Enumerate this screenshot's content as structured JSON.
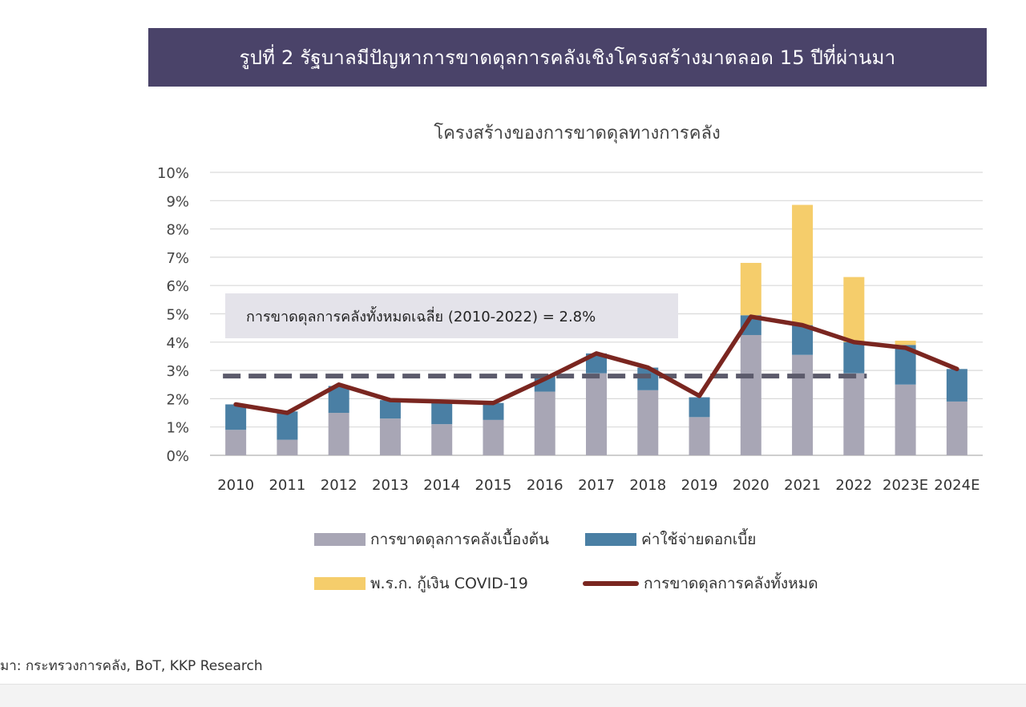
{
  "figure": {
    "banner_title": "รูปที่ 2 รัฐบาลมีปัญหาการขาดดุลการคลังเชิงโครงสร้างมาตลอด 15 ปีที่ผ่านมา",
    "source": "มา: กระทรวงการคลัง, BoT, KKP Research",
    "average_label": "การขาดดุลการคลังทั้งหมดเฉลี่ย (2010-2022) = 2.8%"
  },
  "chart_data": {
    "type": "bar",
    "stacked": true,
    "title": "โครงสร้างของการขาดดุลทางการคลัง",
    "categories": [
      "2010",
      "2011",
      "2012",
      "2013",
      "2014",
      "2015",
      "2016",
      "2017",
      "2018",
      "2019",
      "2020",
      "2021",
      "2022",
      "2023E",
      "2024E"
    ],
    "series": [
      {
        "name": "การขาดดุลการคลังเบื้องต้น",
        "type": "bar",
        "color": "#a8a6b5",
        "values": [
          0.9,
          0.55,
          1.5,
          1.3,
          1.1,
          1.25,
          2.25,
          2.9,
          2.3,
          1.35,
          4.25,
          3.55,
          2.9,
          2.5,
          1.9
        ]
      },
      {
        "name": "ค่าใช้จ่ายดอกเบี้ย",
        "type": "bar",
        "color": "#4a7fa4",
        "values": [
          0.9,
          1.0,
          0.95,
          0.65,
          0.75,
          0.6,
          0.55,
          0.7,
          0.8,
          0.7,
          0.7,
          1.05,
          1.1,
          1.4,
          1.15
        ]
      },
      {
        "name": "พ.ร.ก. กู้เงิน COVID-19",
        "type": "bar",
        "color": "#f5cd6b",
        "values": [
          0,
          0,
          0,
          0,
          0,
          0,
          0,
          0,
          0,
          0,
          1.85,
          4.25,
          2.3,
          0.15,
          0
        ]
      },
      {
        "name": "การขาดดุลการคลังทั้งหมด",
        "type": "line",
        "color": "#7a2620",
        "values": [
          1.8,
          1.5,
          2.5,
          1.95,
          1.9,
          1.85,
          2.7,
          3.6,
          3.1,
          2.1,
          4.9,
          4.6,
          4.0,
          3.8,
          3.05
        ]
      }
    ],
    "average": {
      "value": 2.8,
      "from": "2010",
      "to": "2022",
      "color": "#5b5a6b"
    },
    "yticks": [
      "0%",
      "1%",
      "2%",
      "3%",
      "4%",
      "5%",
      "6%",
      "7%",
      "8%",
      "9%",
      "10%"
    ],
    "ylim": [
      0,
      10
    ],
    "xlabel": "",
    "ylabel": "",
    "grid": true,
    "legend_position": "bottom"
  }
}
